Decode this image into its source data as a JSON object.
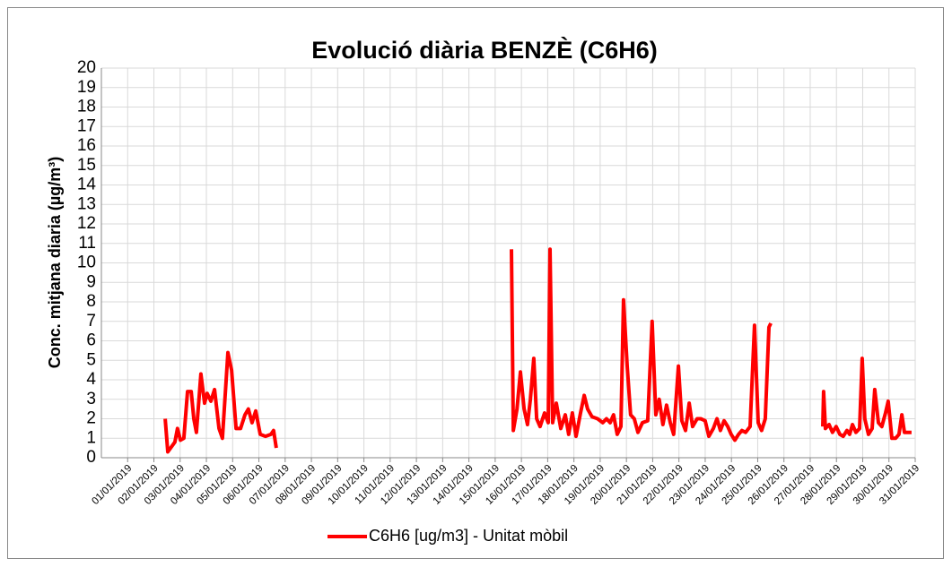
{
  "chart_data": {
    "type": "line",
    "title": "Evolució diària BENZÈ (C6H6)",
    "y_label": "Conc. mitjana diaria (µg/m³)",
    "xlim": [
      0,
      31
    ],
    "ylim": [
      0,
      20
    ],
    "yticks": [
      0,
      1,
      2,
      3,
      4,
      5,
      6,
      7,
      8,
      9,
      10,
      11,
      12,
      13,
      14,
      15,
      16,
      17,
      18,
      19,
      20
    ],
    "xticks": [
      {
        "value": 1,
        "label": "01/01/2019"
      },
      {
        "value": 2,
        "label": "02/01/2019"
      },
      {
        "value": 3,
        "label": "03/01/2019"
      },
      {
        "value": 4,
        "label": "04/01/2019"
      },
      {
        "value": 5,
        "label": "05/01/2019"
      },
      {
        "value": 6,
        "label": "06/01/2019"
      },
      {
        "value": 7,
        "label": "07/01/2019"
      },
      {
        "value": 8,
        "label": "08/01/2019"
      },
      {
        "value": 9,
        "label": "09/01/2019"
      },
      {
        "value": 10,
        "label": "10/01/2019"
      },
      {
        "value": 11,
        "label": "11/01/2019"
      },
      {
        "value": 12,
        "label": "12/01/2019"
      },
      {
        "value": 13,
        "label": "13/01/2019"
      },
      {
        "value": 14,
        "label": "14/01/2019"
      },
      {
        "value": 15,
        "label": "15/01/2019"
      },
      {
        "value": 16,
        "label": "16/01/2019"
      },
      {
        "value": 17,
        "label": "17/01/2019"
      },
      {
        "value": 18,
        "label": "18/01/2019"
      },
      {
        "value": 19,
        "label": "19/01/2019"
      },
      {
        "value": 20,
        "label": "20/01/2019"
      },
      {
        "value": 21,
        "label": "21/01/2019"
      },
      {
        "value": 22,
        "label": "22/01/2019"
      },
      {
        "value": 23,
        "label": "23/01/2019"
      },
      {
        "value": 24,
        "label": "24/01/2019"
      },
      {
        "value": 25,
        "label": "25/01/2019"
      },
      {
        "value": 26,
        "label": "26/01/2019"
      },
      {
        "value": 27,
        "label": "27/01/2019"
      },
      {
        "value": 28,
        "label": "28/01/2019"
      },
      {
        "value": 29,
        "label": "29/01/2019"
      },
      {
        "value": 30,
        "label": "30/01/2019"
      },
      {
        "value": 31,
        "label": "31/01/2019"
      }
    ],
    "grid": true,
    "legend": "bottom",
    "series": [
      {
        "name": "C6H6 [ug/m3] - Unitat mòbil",
        "color": "#ff0000",
        "x": [
          2.43,
          2.53,
          2.8,
          2.9,
          3.01,
          3.14,
          3.28,
          3.42,
          3.52,
          3.62,
          3.79,
          3.93,
          4.03,
          4.17,
          4.31,
          4.48,
          4.61,
          4.82,
          4.96,
          5.13,
          5.3,
          5.47,
          5.6,
          5.74,
          5.88,
          6.05,
          6.25,
          6.46,
          6.56,
          6.66,
          null,
          15.62,
          15.69,
          15.83,
          15.96,
          16.1,
          16.23,
          16.34,
          16.47,
          16.58,
          16.71,
          16.88,
          17.02,
          17.09,
          17.19,
          17.33,
          17.5,
          17.67,
          17.8,
          17.94,
          18.08,
          18.25,
          18.39,
          18.52,
          18.69,
          18.9,
          19.1,
          19.24,
          19.38,
          19.51,
          19.65,
          19.79,
          19.89,
          20.03,
          20.16,
          20.3,
          20.44,
          20.61,
          20.81,
          20.98,
          21.12,
          21.25,
          21.39,
          21.53,
          21.67,
          21.8,
          21.98,
          22.11,
          22.25,
          22.39,
          22.52,
          22.69,
          22.83,
          23.0,
          23.14,
          23.31,
          23.45,
          23.58,
          23.72,
          23.86,
          23.99,
          24.13,
          24.27,
          24.4,
          24.54,
          24.71,
          24.88,
          25.02,
          25.15,
          25.29,
          25.43,
          25.5,
          null,
          27.48,
          27.51,
          27.58,
          27.72,
          27.85,
          27.99,
          28.13,
          28.26,
          28.4,
          28.5,
          28.61,
          28.74,
          28.88,
          28.98,
          29.08,
          29.22,
          29.36,
          29.46,
          29.6,
          29.73,
          29.87,
          29.97,
          30.11,
          30.25,
          30.38,
          30.49,
          30.59,
          30.72,
          30.86
        ],
        "values": [
          2.0,
          0.3,
          0.8,
          1.5,
          0.9,
          1.0,
          3.4,
          3.4,
          2.0,
          1.3,
          4.3,
          2.8,
          3.3,
          2.9,
          3.5,
          1.5,
          1.0,
          5.4,
          4.5,
          1.5,
          1.5,
          2.2,
          2.5,
          1.8,
          2.4,
          1.2,
          1.1,
          1.2,
          1.4,
          0.5,
          null,
          10.7,
          1.4,
          2.5,
          4.4,
          2.5,
          1.7,
          3.0,
          5.1,
          2.0,
          1.6,
          2.3,
          1.8,
          10.7,
          1.8,
          2.8,
          1.5,
          2.2,
          1.2,
          2.3,
          1.1,
          2.3,
          3.2,
          2.5,
          2.1,
          2.0,
          1.8,
          2.0,
          1.8,
          2.2,
          1.2,
          1.6,
          8.1,
          4.7,
          2.2,
          2.0,
          1.3,
          1.8,
          1.9,
          7.0,
          2.2,
          3.0,
          1.7,
          2.7,
          1.8,
          1.2,
          4.7,
          1.9,
          1.4,
          2.8,
          1.6,
          2.0,
          2.0,
          1.9,
          1.1,
          1.5,
          2.0,
          1.4,
          1.9,
          1.6,
          1.2,
          0.9,
          1.2,
          1.4,
          1.3,
          1.6,
          6.8,
          1.8,
          1.4,
          2.0,
          6.7,
          6.9,
          null,
          1.6,
          3.4,
          1.5,
          1.7,
          1.3,
          1.6,
          1.2,
          1.1,
          1.4,
          1.2,
          1.7,
          1.3,
          1.5,
          5.1,
          2.0,
          1.2,
          1.5,
          3.5,
          1.8,
          1.6,
          2.3,
          2.9,
          1.0,
          1.0,
          1.2,
          2.2,
          1.3,
          1.3,
          1.3
        ]
      }
    ]
  }
}
